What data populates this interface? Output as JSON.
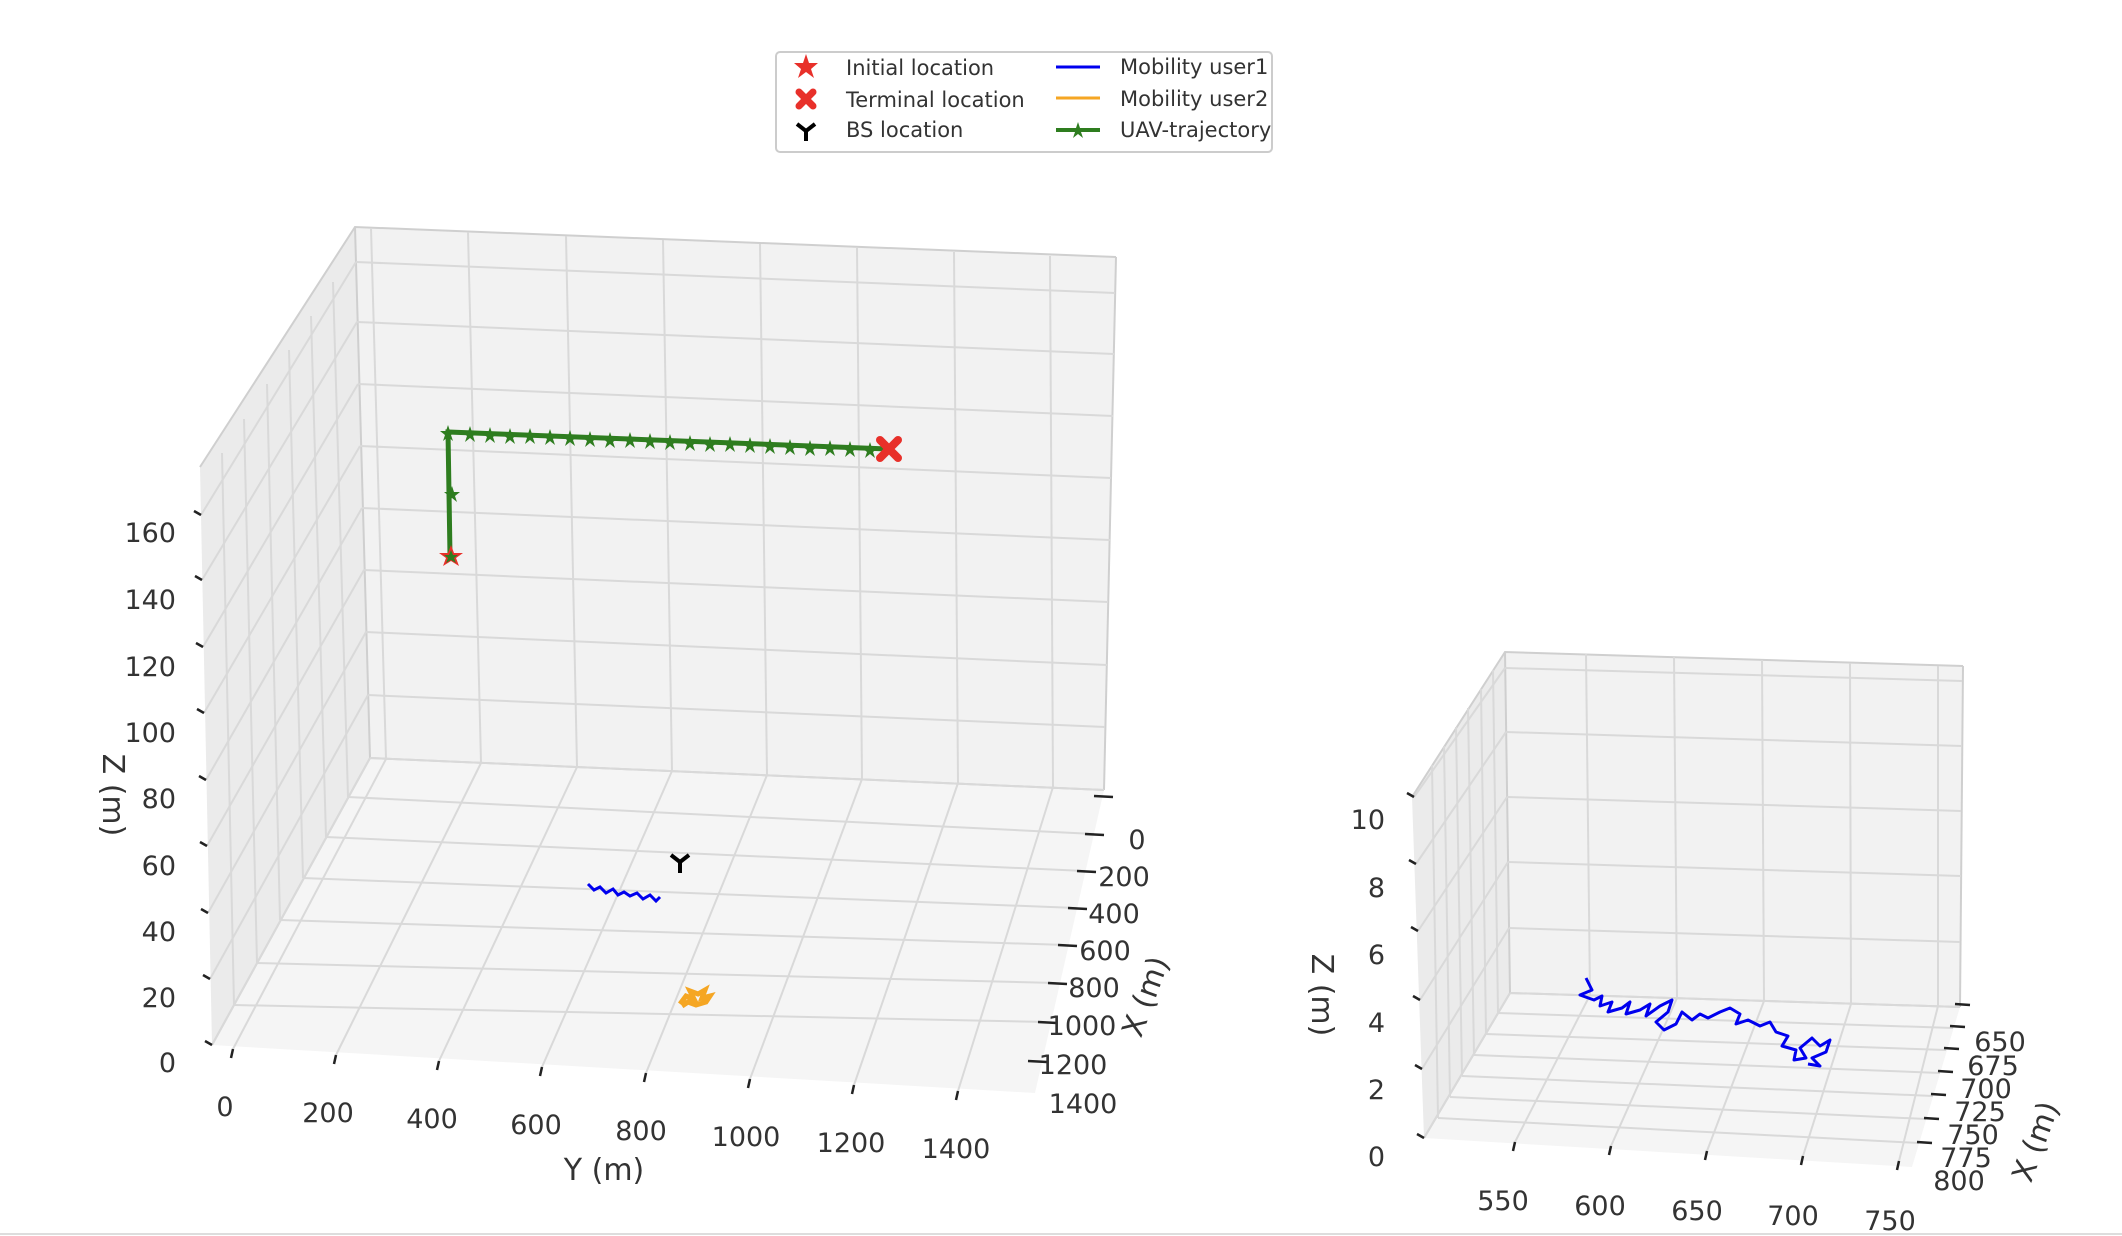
{
  "chart_data": [
    {
      "type": "scatter3d",
      "title": "",
      "xlabel": "X (m)",
      "ylabel": "Y (m)",
      "zlabel": "Z (m)",
      "xlim": [
        0,
        1400
      ],
      "ylim": [
        0,
        1500
      ],
      "zlim": [
        0,
        170
      ],
      "x_ticks": [
        "0",
        "200",
        "400",
        "600",
        "800",
        "1000",
        "1200",
        "1400"
      ],
      "y_ticks": [
        "0",
        "200",
        "400",
        "600",
        "800",
        "1000",
        "1200",
        "1400"
      ],
      "z_ticks": [
        "0",
        "20",
        "40",
        "60",
        "80",
        "100",
        "120",
        "140",
        "160"
      ],
      "legend": {
        "position": "top-center",
        "entries": [
          {
            "label": "Initial location",
            "marker": "star",
            "color": "#e8302a"
          },
          {
            "label": "Terminal location",
            "marker": "x-filled",
            "color": "#e8302a"
          },
          {
            "label": "BS location",
            "marker": "tri-down",
            "color": "#000000"
          },
          {
            "label": "Mobility user1",
            "marker": "line",
            "color": "#0000ee"
          },
          {
            "label": "Mobility user2",
            "marker": "line",
            "color": "#f5a623"
          },
          {
            "label": "UAV-trajectory",
            "marker": "line-star",
            "color": "#2e7d1f"
          }
        ]
      },
      "series": [
        {
          "name": "UAV-trajectory",
          "color": "#2e7d1f",
          "points": [
            [
              1000,
              150,
              150
            ],
            [
              1000,
              150,
              170
            ],
            [
              1000,
              1100,
              170
            ]
          ]
        },
        {
          "name": "Initial location",
          "color": "#e8302a",
          "points": [
            [
              1000,
              150,
              150
            ]
          ]
        },
        {
          "name": "Terminal location",
          "color": "#e8302a",
          "points": [
            [
              1000,
              1100,
              170
            ]
          ]
        },
        {
          "name": "BS location",
          "color": "#000000",
          "points": [
            [
              750,
              750,
              0
            ]
          ]
        },
        {
          "name": "Mobility user1",
          "color": "#0000ee",
          "path": "random-walk",
          "center": [
            700,
            600,
            0
          ]
        },
        {
          "name": "Mobility user2",
          "color": "#f5a623",
          "path": "random-walk",
          "center": [
            1000,
            800,
            0
          ]
        }
      ]
    },
    {
      "type": "scatter3d",
      "title": "",
      "xlabel": "X (m)",
      "ylabel": "",
      "zlabel": "Z (m)",
      "xlim": [
        630,
        800
      ],
      "ylim": [
        530,
        760
      ],
      "zlim": [
        0,
        11
      ],
      "x_ticks": [
        "650",
        "675",
        "700",
        "725",
        "750",
        "775",
        "800"
      ],
      "y_ticks": [
        "550",
        "600",
        "650",
        "700",
        "750"
      ],
      "z_ticks": [
        "0",
        "2",
        "4",
        "6",
        "8",
        "10"
      ],
      "series": [
        {
          "name": "Mobility user1",
          "color": "#0000ee",
          "path": "random-walk",
          "y_range": [
            570,
            720
          ],
          "z": 4.5
        }
      ]
    }
  ]
}
